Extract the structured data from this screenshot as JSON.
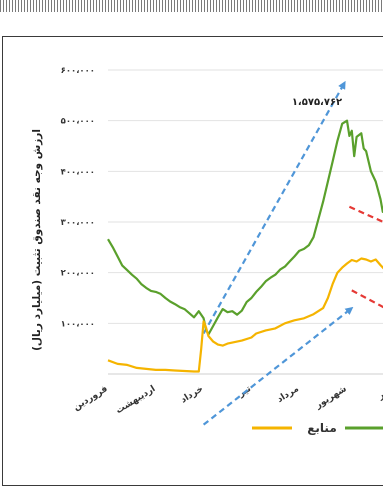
{
  "chart_data": {
    "type": "line",
    "title": "",
    "ylabel": "ارزش وجه نقد صندوق تثبیت (میلیارد ریال)",
    "xlabel": "",
    "ylim": [
      0,
      600000
    ],
    "yticks": [
      {
        "value": 100000,
        "label": "۱۰۰،۰۰۰"
      },
      {
        "value": 200000,
        "label": "۲۰۰،۰۰۰"
      },
      {
        "value": 300000,
        "label": "۳۰۰،۰۰۰"
      },
      {
        "value": 400000,
        "label": "۴۰۰،۰۰۰"
      },
      {
        "value": 500000,
        "label": "۵۰۰،۰۰۰"
      },
      {
        "value": 600000,
        "label": "۶۰۰،۰۰۰"
      }
    ],
    "categories": [
      "فروردین",
      "اردیبهشت",
      "خرداد",
      "تیر",
      "مرداد",
      "شهریور",
      "مهر"
    ],
    "annotation": {
      "label": "۱،۵۷۵،۷۶۲",
      "x": 5.0,
      "y": 575762
    },
    "series": [
      {
        "name": "",
        "color": "#5aa02c",
        "points": [
          [
            0.0,
            266000
          ],
          [
            0.1,
            250000
          ],
          [
            0.2,
            232000
          ],
          [
            0.3,
            214000
          ],
          [
            0.4,
            205000
          ],
          [
            0.5,
            196000
          ],
          [
            0.6,
            188000
          ],
          [
            0.7,
            177000
          ],
          [
            0.8,
            170000
          ],
          [
            0.9,
            164000
          ],
          [
            1.0,
            162000
          ],
          [
            1.1,
            158000
          ],
          [
            1.2,
            150000
          ],
          [
            1.3,
            143000
          ],
          [
            1.4,
            138000
          ],
          [
            1.5,
            132000
          ],
          [
            1.6,
            128000
          ],
          [
            1.7,
            120000
          ],
          [
            1.8,
            112000
          ],
          [
            1.9,
            124000
          ],
          [
            2.0,
            110000
          ],
          [
            2.05,
            88000
          ],
          [
            2.1,
            78000
          ],
          [
            2.2,
            95000
          ],
          [
            2.3,
            112000
          ],
          [
            2.4,
            128000
          ],
          [
            2.5,
            122000
          ],
          [
            2.6,
            124000
          ],
          [
            2.7,
            117000
          ],
          [
            2.8,
            125000
          ],
          [
            2.9,
            142000
          ],
          [
            3.0,
            150000
          ],
          [
            3.1,
            162000
          ],
          [
            3.2,
            172000
          ],
          [
            3.3,
            183000
          ],
          [
            3.4,
            190000
          ],
          [
            3.5,
            196000
          ],
          [
            3.6,
            206000
          ],
          [
            3.7,
            212000
          ],
          [
            3.8,
            222000
          ],
          [
            3.9,
            232000
          ],
          [
            4.0,
            243000
          ],
          [
            4.1,
            247000
          ],
          [
            4.2,
            254000
          ],
          [
            4.3,
            270000
          ],
          [
            4.4,
            305000
          ],
          [
            4.5,
            340000
          ],
          [
            4.6,
            380000
          ],
          [
            4.7,
            420000
          ],
          [
            4.8,
            460000
          ],
          [
            4.9,
            494000
          ],
          [
            5.0,
            500000
          ],
          [
            5.05,
            470000
          ],
          [
            5.1,
            480000
          ],
          [
            5.15,
            430000
          ],
          [
            5.2,
            468000
          ],
          [
            5.3,
            475000
          ],
          [
            5.35,
            445000
          ],
          [
            5.4,
            440000
          ],
          [
            5.5,
            400000
          ],
          [
            5.6,
            380000
          ],
          [
            5.7,
            345000
          ],
          [
            5.75,
            320000
          ],
          [
            5.8,
            340000
          ],
          [
            5.9,
            392000
          ],
          [
            6.0,
            375000
          ]
        ]
      },
      {
        "name": "منابع",
        "color": "#f5b400",
        "points": [
          [
            0.0,
            27000
          ],
          [
            0.2,
            20000
          ],
          [
            0.4,
            18000
          ],
          [
            0.6,
            12000
          ],
          [
            0.8,
            10000
          ],
          [
            1.0,
            8000
          ],
          [
            1.2,
            8000
          ],
          [
            1.4,
            7000
          ],
          [
            1.6,
            6000
          ],
          [
            1.8,
            5000
          ],
          [
            1.9,
            5000
          ],
          [
            1.95,
            50000
          ],
          [
            2.0,
            104000
          ],
          [
            2.05,
            92000
          ],
          [
            2.1,
            75000
          ],
          [
            2.2,
            64000
          ],
          [
            2.3,
            58000
          ],
          [
            2.4,
            56000
          ],
          [
            2.5,
            60000
          ],
          [
            2.6,
            62000
          ],
          [
            2.8,
            66000
          ],
          [
            3.0,
            72000
          ],
          [
            3.1,
            80000
          ],
          [
            3.3,
            86000
          ],
          [
            3.5,
            90000
          ],
          [
            3.7,
            100000
          ],
          [
            3.9,
            106000
          ],
          [
            4.1,
            110000
          ],
          [
            4.3,
            118000
          ],
          [
            4.5,
            130000
          ],
          [
            4.6,
            150000
          ],
          [
            4.7,
            178000
          ],
          [
            4.8,
            200000
          ],
          [
            4.9,
            210000
          ],
          [
            5.0,
            218000
          ],
          [
            5.1,
            225000
          ],
          [
            5.2,
            222000
          ],
          [
            5.3,
            228000
          ],
          [
            5.4,
            226000
          ],
          [
            5.5,
            222000
          ],
          [
            5.6,
            226000
          ],
          [
            5.7,
            215000
          ],
          [
            5.8,
            205000
          ],
          [
            5.9,
            224000
          ],
          [
            6.0,
            220000
          ]
        ]
      }
    ],
    "trend_arrows": [
      {
        "color": "#4f96d8",
        "from": [
          2.0,
          80000
        ],
        "to": [
          4.95,
          575000
        ]
      },
      {
        "color": "#4f96d8",
        "from": [
          2.0,
          -100000
        ],
        "to": [
          5.1,
          130000
        ]
      },
      {
        "color": "#e53935",
        "from": [
          5.05,
          330000
        ],
        "to": [
          6.0,
          290000
        ]
      },
      {
        "color": "#e53935",
        "from": [
          5.1,
          165000
        ],
        "to": [
          6.0,
          120000
        ]
      }
    ],
    "legend": {
      "position": "bottom"
    }
  }
}
